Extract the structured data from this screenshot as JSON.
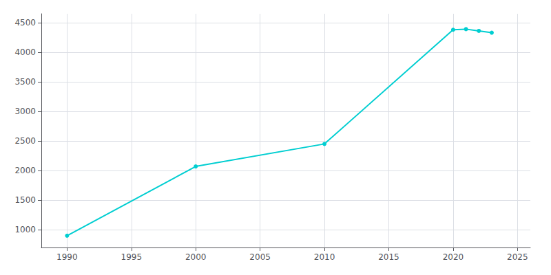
{
  "chart_data": {
    "type": "line",
    "x": [
      1990,
      2000,
      2010,
      2020,
      2021,
      2022,
      2023
    ],
    "values": [
      900,
      2070,
      2450,
      4380,
      4390,
      4360,
      4330
    ],
    "color": "#00CED1",
    "marker": "circle",
    "xlim": [
      1988,
      2026
    ],
    "ylim": [
      700,
      4650
    ],
    "xticks": [
      1990,
      1995,
      2000,
      2005,
      2010,
      2015,
      2020,
      2025
    ],
    "yticks": [
      1000,
      1500,
      2000,
      2500,
      3000,
      3500,
      4000,
      4500
    ],
    "grid": true
  }
}
